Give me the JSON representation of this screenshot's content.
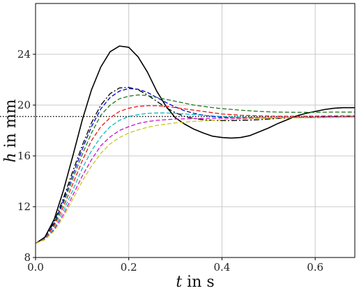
{
  "chart_data": {
    "type": "line",
    "xlabel": {
      "symbol": "t",
      "rest": " in s"
    },
    "ylabel": {
      "symbol": "h",
      "rest": " in mm"
    },
    "xlim": [
      0.0,
      0.685
    ],
    "ylim": [
      8,
      28
    ],
    "xticks": [
      0.0,
      0.2,
      0.4,
      0.6
    ],
    "xtick_labels": [
      "0.0",
      "0.2",
      "0.4",
      "0.6"
    ],
    "yticks": [
      8,
      12,
      16,
      20,
      24
    ],
    "ytick_labels": [
      "8",
      "12",
      "16",
      "20",
      "24"
    ],
    "grid": true,
    "reference_line": {
      "y": 19.1,
      "style": "dotted",
      "color": "#000000"
    },
    "series": [
      {
        "color": "#000000",
        "dash": "solid",
        "x": [
          0,
          0.02,
          0.04,
          0.06,
          0.08,
          0.1,
          0.12,
          0.14,
          0.16,
          0.18,
          0.2,
          0.22,
          0.24,
          0.26,
          0.28,
          0.3,
          0.32,
          0.34,
          0.36,
          0.38,
          0.4,
          0.42,
          0.44,
          0.46,
          0.48,
          0.5,
          0.52,
          0.54,
          0.56,
          0.58,
          0.6,
          0.62,
          0.64,
          0.66,
          0.685
        ],
        "y": [
          9.1,
          9.6,
          11.0,
          13.3,
          16.0,
          18.8,
          21.2,
          23.0,
          24.2,
          24.65,
          24.55,
          23.8,
          22.6,
          21.1,
          19.9,
          19.0,
          18.5,
          18.1,
          17.8,
          17.55,
          17.45,
          17.4,
          17.45,
          17.6,
          17.9,
          18.2,
          18.55,
          18.85,
          19.15,
          19.35,
          19.5,
          19.65,
          19.75,
          19.8,
          19.8
        ]
      },
      {
        "color": "#000000",
        "dash": "dashdot",
        "x": [
          0,
          0.02,
          0.04,
          0.06,
          0.08,
          0.1,
          0.12,
          0.14,
          0.16,
          0.18,
          0.2,
          0.22,
          0.24,
          0.26,
          0.28,
          0.3,
          0.32,
          0.34,
          0.36,
          0.38,
          0.4,
          0.42,
          0.44,
          0.46,
          0.48,
          0.5,
          0.52,
          0.55,
          0.6,
          0.65,
          0.685
        ],
        "y": [
          9.1,
          9.55,
          10.8,
          12.7,
          14.8,
          16.8,
          18.6,
          20.0,
          20.9,
          21.35,
          21.4,
          21.2,
          20.8,
          20.3,
          19.8,
          19.4,
          19.1,
          18.95,
          18.85,
          18.8,
          18.78,
          18.78,
          18.8,
          18.82,
          18.85,
          18.9,
          18.95,
          19.0,
          19.05,
          19.1,
          19.1
        ]
      },
      {
        "color": "#0000cc",
        "dash": "dashed",
        "x": [
          0,
          0.02,
          0.04,
          0.06,
          0.08,
          0.1,
          0.12,
          0.14,
          0.16,
          0.18,
          0.2,
          0.22,
          0.24,
          0.26,
          0.28,
          0.3,
          0.32,
          0.34,
          0.36,
          0.38,
          0.4,
          0.42,
          0.44,
          0.46,
          0.5,
          0.55,
          0.6,
          0.65,
          0.685
        ],
        "y": [
          9.1,
          9.52,
          10.7,
          12.5,
          14.5,
          16.5,
          18.3,
          19.7,
          20.6,
          21.1,
          21.3,
          21.25,
          21.0,
          20.6,
          20.2,
          19.85,
          19.55,
          19.35,
          19.2,
          19.1,
          19.05,
          19.0,
          18.98,
          18.98,
          19.0,
          19.02,
          19.05,
          19.08,
          19.1
        ]
      },
      {
        "color": "#1a7a1a",
        "dash": "dashed",
        "x": [
          0,
          0.02,
          0.04,
          0.06,
          0.08,
          0.1,
          0.12,
          0.14,
          0.16,
          0.18,
          0.2,
          0.22,
          0.24,
          0.26,
          0.28,
          0.3,
          0.32,
          0.34,
          0.36,
          0.38,
          0.4,
          0.44,
          0.48,
          0.52,
          0.56,
          0.6,
          0.64,
          0.685
        ],
        "y": [
          9.1,
          9.5,
          10.6,
          12.3,
          14.2,
          16.1,
          17.8,
          19.2,
          20.0,
          20.5,
          20.7,
          20.8,
          20.75,
          20.6,
          20.45,
          20.3,
          20.15,
          20.0,
          19.9,
          19.8,
          19.72,
          19.6,
          19.5,
          19.45,
          19.43,
          19.43,
          19.45,
          19.45
        ]
      },
      {
        "color": "#ee1111",
        "dash": "dashed",
        "x": [
          0,
          0.02,
          0.04,
          0.06,
          0.08,
          0.1,
          0.12,
          0.14,
          0.16,
          0.18,
          0.2,
          0.22,
          0.24,
          0.26,
          0.28,
          0.3,
          0.32,
          0.34,
          0.36,
          0.38,
          0.4,
          0.44,
          0.48,
          0.52,
          0.56,
          0.6,
          0.64,
          0.685
        ],
        "y": [
          9.1,
          9.48,
          10.5,
          12.0,
          13.8,
          15.6,
          17.2,
          18.3,
          19.0,
          19.5,
          19.75,
          19.9,
          19.95,
          19.95,
          19.9,
          19.8,
          19.7,
          19.6,
          19.5,
          19.4,
          19.3,
          19.2,
          19.15,
          19.12,
          19.12,
          19.13,
          19.15,
          19.15
        ]
      },
      {
        "color": "#11bbbb",
        "dash": "dashed",
        "x": [
          0,
          0.02,
          0.04,
          0.06,
          0.08,
          0.1,
          0.12,
          0.14,
          0.16,
          0.18,
          0.2,
          0.22,
          0.24,
          0.26,
          0.28,
          0.3,
          0.32,
          0.34,
          0.36,
          0.38,
          0.4,
          0.44,
          0.48,
          0.52,
          0.56,
          0.6,
          0.64,
          0.685
        ],
        "y": [
          9.1,
          9.45,
          10.3,
          11.7,
          13.3,
          15.0,
          16.4,
          17.5,
          18.3,
          18.8,
          19.1,
          19.25,
          19.35,
          19.38,
          19.38,
          19.35,
          19.3,
          19.25,
          19.2,
          19.15,
          19.1,
          19.05,
          19.02,
          19.0,
          19.0,
          19.0,
          19.02,
          19.05
        ]
      },
      {
        "color": "#cc11cc",
        "dash": "dashed",
        "x": [
          0,
          0.02,
          0.04,
          0.06,
          0.08,
          0.1,
          0.12,
          0.14,
          0.16,
          0.18,
          0.2,
          0.22,
          0.24,
          0.26,
          0.28,
          0.3,
          0.32,
          0.34,
          0.36,
          0.38,
          0.4,
          0.44,
          0.48,
          0.52,
          0.56,
          0.6,
          0.64,
          0.685
        ],
        "y": [
          9.1,
          9.42,
          10.2,
          11.4,
          12.9,
          14.4,
          15.7,
          16.8,
          17.5,
          18.0,
          18.3,
          18.55,
          18.7,
          18.8,
          18.85,
          18.9,
          18.92,
          18.94,
          18.95,
          18.96,
          18.97,
          18.98,
          19.0,
          19.0,
          19.02,
          19.04,
          19.06,
          19.08
        ]
      },
      {
        "color": "#c8c81e",
        "dash": "dashed",
        "x": [
          0,
          0.02,
          0.04,
          0.06,
          0.08,
          0.1,
          0.12,
          0.14,
          0.16,
          0.18,
          0.2,
          0.22,
          0.24,
          0.26,
          0.28,
          0.3,
          0.32,
          0.34,
          0.36,
          0.38,
          0.4,
          0.44,
          0.48,
          0.52,
          0.56,
          0.6,
          0.64,
          0.685
        ],
        "y": [
          9.1,
          9.4,
          10.1,
          11.2,
          12.6,
          14.0,
          15.2,
          16.2,
          16.95,
          17.45,
          17.8,
          18.05,
          18.25,
          18.4,
          18.5,
          18.6,
          18.66,
          18.72,
          18.76,
          18.8,
          18.84,
          18.9,
          18.95,
          18.98,
          19.0,
          19.02,
          19.04,
          19.06
        ]
      }
    ]
  }
}
